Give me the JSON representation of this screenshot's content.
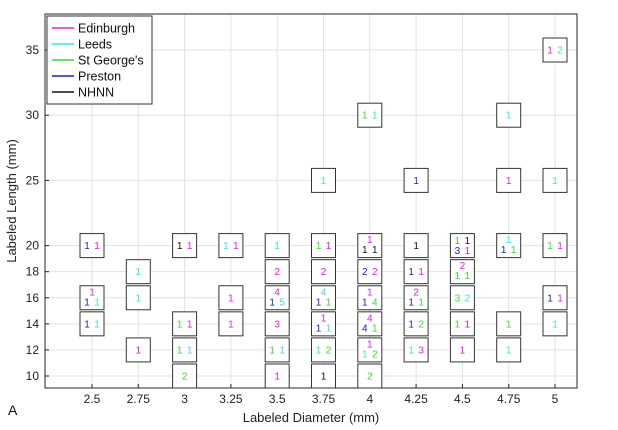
{
  "panel_label": "A",
  "chart_data": {
    "type": "scatter",
    "xlabel": "Labeled Diameter (mm)",
    "ylabel": "Labeled Length (mm)",
    "x_ticks": [
      "2.5",
      "2.75",
      "3",
      "3.25",
      "3.5",
      "3.75",
      "4",
      "4.25",
      "4.5",
      "4.75",
      "5"
    ],
    "y_ticks": [
      "10",
      "12",
      "14",
      "16",
      "18",
      "20",
      "25",
      "30",
      "35"
    ],
    "grid": true,
    "legend_position": "top-left",
    "series": [
      {
        "name": "Edinburgh",
        "color": "#e619e6"
      },
      {
        "name": "Leeds",
        "color": "#33e6e6"
      },
      {
        "name": "St George's",
        "color": "#33dd33"
      },
      {
        "name": "Preston",
        "color": "#1a1acc"
      },
      {
        "name": "NHNN",
        "color": "#111111"
      }
    ],
    "cells": [
      {
        "x": "2.5",
        "y": "20",
        "counts": [
          {
            "series": "Preston",
            "value": "1"
          },
          {
            "series": "Edinburgh",
            "value": "1"
          }
        ]
      },
      {
        "x": "2.5",
        "y": "16",
        "counts": [
          {
            "series": "Edinburgh",
            "value": "1"
          },
          {
            "series": "Preston",
            "value": "1"
          },
          {
            "series": "Leeds",
            "value": "1"
          }
        ]
      },
      {
        "x": "2.5",
        "y": "14",
        "counts": [
          {
            "series": "Preston",
            "value": "1"
          },
          {
            "series": "Leeds",
            "value": "1"
          }
        ]
      },
      {
        "x": "2.75",
        "y": "18",
        "counts": [
          {
            "series": "Leeds",
            "value": "1"
          }
        ]
      },
      {
        "x": "2.75",
        "y": "16",
        "counts": [
          {
            "series": "Leeds",
            "value": "1"
          }
        ]
      },
      {
        "x": "2.75",
        "y": "12",
        "counts": [
          {
            "series": "Edinburgh",
            "value": "1"
          }
        ]
      },
      {
        "x": "3",
        "y": "20",
        "counts": [
          {
            "series": "NHNN",
            "value": "1"
          },
          {
            "series": "Edinburgh",
            "value": "1"
          }
        ]
      },
      {
        "x": "3",
        "y": "14",
        "counts": [
          {
            "series": "St George's",
            "value": "1"
          },
          {
            "series": "Edinburgh",
            "value": "1"
          }
        ]
      },
      {
        "x": "3",
        "y": "12",
        "counts": [
          {
            "series": "St George's",
            "value": "1"
          },
          {
            "series": "Leeds",
            "value": "1"
          }
        ]
      },
      {
        "x": "3",
        "y": "10",
        "counts": [
          {
            "series": "St George's",
            "value": "2"
          }
        ]
      },
      {
        "x": "3.25",
        "y": "20",
        "counts": [
          {
            "series": "Leeds",
            "value": "1"
          },
          {
            "series": "Edinburgh",
            "value": "1"
          }
        ]
      },
      {
        "x": "3.25",
        "y": "16",
        "counts": [
          {
            "series": "Edinburgh",
            "value": "1"
          }
        ]
      },
      {
        "x": "3.25",
        "y": "14",
        "counts": [
          {
            "series": "Edinburgh",
            "value": "1"
          }
        ]
      },
      {
        "x": "3.5",
        "y": "20",
        "counts": [
          {
            "series": "Leeds",
            "value": "1"
          }
        ]
      },
      {
        "x": "3.5",
        "y": "18",
        "counts": [
          {
            "series": "Edinburgh",
            "value": "2"
          }
        ]
      },
      {
        "x": "3.5",
        "y": "16",
        "counts": [
          {
            "series": "Edinburgh",
            "value": "4"
          },
          {
            "series": "Preston",
            "value": "1"
          },
          {
            "series": "Leeds",
            "value": "5"
          }
        ]
      },
      {
        "x": "3.5",
        "y": "14",
        "counts": [
          {
            "series": "Edinburgh",
            "value": "3"
          }
        ]
      },
      {
        "x": "3.5",
        "y": "12",
        "counts": [
          {
            "series": "St George's",
            "value": "1"
          },
          {
            "series": "Leeds",
            "value": "1"
          }
        ]
      },
      {
        "x": "3.5",
        "y": "10",
        "counts": [
          {
            "series": "Edinburgh",
            "value": "1"
          }
        ]
      },
      {
        "x": "3.75",
        "y": "25",
        "counts": [
          {
            "series": "Leeds",
            "value": "1"
          }
        ]
      },
      {
        "x": "3.75",
        "y": "20",
        "counts": [
          {
            "series": "St George's",
            "value": "1"
          },
          {
            "series": "Edinburgh",
            "value": "1"
          }
        ]
      },
      {
        "x": "3.75",
        "y": "18",
        "counts": [
          {
            "series": "Edinburgh",
            "value": "2"
          }
        ]
      },
      {
        "x": "3.75",
        "y": "16",
        "counts": [
          {
            "series": "Leeds",
            "value": "4"
          },
          {
            "series": "Preston",
            "value": "1"
          },
          {
            "series": "St George's",
            "value": "1"
          }
        ]
      },
      {
        "x": "3.75",
        "y": "14",
        "counts": [
          {
            "series": "Edinburgh",
            "value": "1"
          },
          {
            "series": "Preston",
            "value": "1"
          },
          {
            "series": "Leeds",
            "value": "1"
          }
        ]
      },
      {
        "x": "3.75",
        "y": "12",
        "counts": [
          {
            "series": "Leeds",
            "value": "1"
          },
          {
            "series": "St George's",
            "value": "2"
          }
        ]
      },
      {
        "x": "3.75",
        "y": "10",
        "counts": [
          {
            "series": "NHNN",
            "value": "1"
          }
        ]
      },
      {
        "x": "4",
        "y": "30",
        "counts": [
          {
            "series": "St George's",
            "value": "1"
          },
          {
            "series": "Leeds",
            "value": "1"
          }
        ]
      },
      {
        "x": "4",
        "y": "20",
        "counts": [
          {
            "series": "Edinburgh",
            "value": "1"
          },
          {
            "series": "NHNN",
            "value": "1"
          },
          {
            "series": "NHNN",
            "value": "1"
          }
        ]
      },
      {
        "x": "4",
        "y": "18",
        "counts": [
          {
            "series": "Preston",
            "value": "2"
          },
          {
            "series": "Edinburgh",
            "value": "2"
          }
        ]
      },
      {
        "x": "4",
        "y": "16",
        "counts": [
          {
            "series": "Edinburgh",
            "value": "1"
          },
          {
            "series": "Preston",
            "value": "1"
          },
          {
            "series": "St George's",
            "value": "4"
          }
        ]
      },
      {
        "x": "4",
        "y": "14",
        "counts": [
          {
            "series": "Edinburgh",
            "value": "4"
          },
          {
            "series": "Preston",
            "value": "4"
          },
          {
            "series": "St George's",
            "value": "1"
          }
        ]
      },
      {
        "x": "4",
        "y": "12",
        "counts": [
          {
            "series": "Edinburgh",
            "value": "1"
          },
          {
            "series": "Leeds",
            "value": "1"
          },
          {
            "series": "St George's",
            "value": "2"
          }
        ]
      },
      {
        "x": "4",
        "y": "10",
        "counts": [
          {
            "series": "St George's",
            "value": "2"
          }
        ]
      },
      {
        "x": "4.25",
        "y": "25",
        "counts": [
          {
            "series": "Preston",
            "value": "1"
          }
        ]
      },
      {
        "x": "4.25",
        "y": "20",
        "counts": [
          {
            "series": "NHNN",
            "value": "1"
          }
        ]
      },
      {
        "x": "4.25",
        "y": "18",
        "counts": [
          {
            "series": "Preston",
            "value": "1"
          },
          {
            "series": "Edinburgh",
            "value": "1"
          }
        ]
      },
      {
        "x": "4.25",
        "y": "16",
        "counts": [
          {
            "series": "Edinburgh",
            "value": "2"
          },
          {
            "series": "Preston",
            "value": "1"
          },
          {
            "series": "St George's",
            "value": "1"
          }
        ]
      },
      {
        "x": "4.25",
        "y": "14",
        "counts": [
          {
            "series": "Preston",
            "value": "1"
          },
          {
            "series": "St George's",
            "value": "2"
          }
        ]
      },
      {
        "x": "4.25",
        "y": "12",
        "counts": [
          {
            "series": "Leeds",
            "value": "1"
          },
          {
            "series": "Edinburgh",
            "value": "3"
          }
        ]
      },
      {
        "x": "4.5",
        "y": "20",
        "counts": [
          {
            "series": "St George's",
            "value": "1"
          },
          {
            "series": "NHNN",
            "value": "1"
          },
          {
            "series": "Preston",
            "value": "3"
          },
          {
            "series": "Edinburgh",
            "value": "1"
          }
        ]
      },
      {
        "x": "4.5",
        "y": "18",
        "counts": [
          {
            "series": "Edinburgh",
            "value": "2"
          },
          {
            "series": "St George's",
            "value": "1"
          },
          {
            "series": "St George's",
            "value": "1"
          }
        ]
      },
      {
        "x": "4.5",
        "y": "16",
        "counts": [
          {
            "series": "St George's",
            "value": "3"
          },
          {
            "series": "Leeds",
            "value": "2"
          }
        ]
      },
      {
        "x": "4.5",
        "y": "14",
        "counts": [
          {
            "series": "St George's",
            "value": "1"
          },
          {
            "series": "Edinburgh",
            "value": "1"
          }
        ]
      },
      {
        "x": "4.5",
        "y": "12",
        "counts": [
          {
            "series": "Edinburgh",
            "value": "1"
          }
        ]
      },
      {
        "x": "4.75",
        "y": "30",
        "counts": [
          {
            "series": "Leeds",
            "value": "1"
          }
        ]
      },
      {
        "x": "4.75",
        "y": "25",
        "counts": [
          {
            "series": "Edinburgh",
            "value": "1"
          }
        ]
      },
      {
        "x": "4.75",
        "y": "20",
        "counts": [
          {
            "series": "Leeds",
            "value": "1"
          },
          {
            "series": "Preston",
            "value": "1"
          },
          {
            "series": "St George's",
            "value": "1"
          }
        ]
      },
      {
        "x": "4.75",
        "y": "14",
        "counts": [
          {
            "series": "St George's",
            "value": "1"
          }
        ]
      },
      {
        "x": "4.75",
        "y": "12",
        "counts": [
          {
            "series": "Leeds",
            "value": "1"
          }
        ]
      },
      {
        "x": "5",
        "y": "35",
        "counts": [
          {
            "series": "Edinburgh",
            "value": "1"
          },
          {
            "series": "Leeds",
            "value": "2"
          }
        ]
      },
      {
        "x": "5",
        "y": "25",
        "counts": [
          {
            "series": "Leeds",
            "value": "1"
          }
        ]
      },
      {
        "x": "5",
        "y": "20",
        "counts": [
          {
            "series": "St George's",
            "value": "1"
          },
          {
            "series": "Edinburgh",
            "value": "1"
          }
        ]
      },
      {
        "x": "5",
        "y": "16",
        "counts": [
          {
            "series": "Preston",
            "value": "1"
          },
          {
            "series": "Edinburgh",
            "value": "1"
          }
        ]
      },
      {
        "x": "5",
        "y": "14",
        "counts": [
          {
            "series": "Leeds",
            "value": "1"
          }
        ]
      }
    ]
  }
}
